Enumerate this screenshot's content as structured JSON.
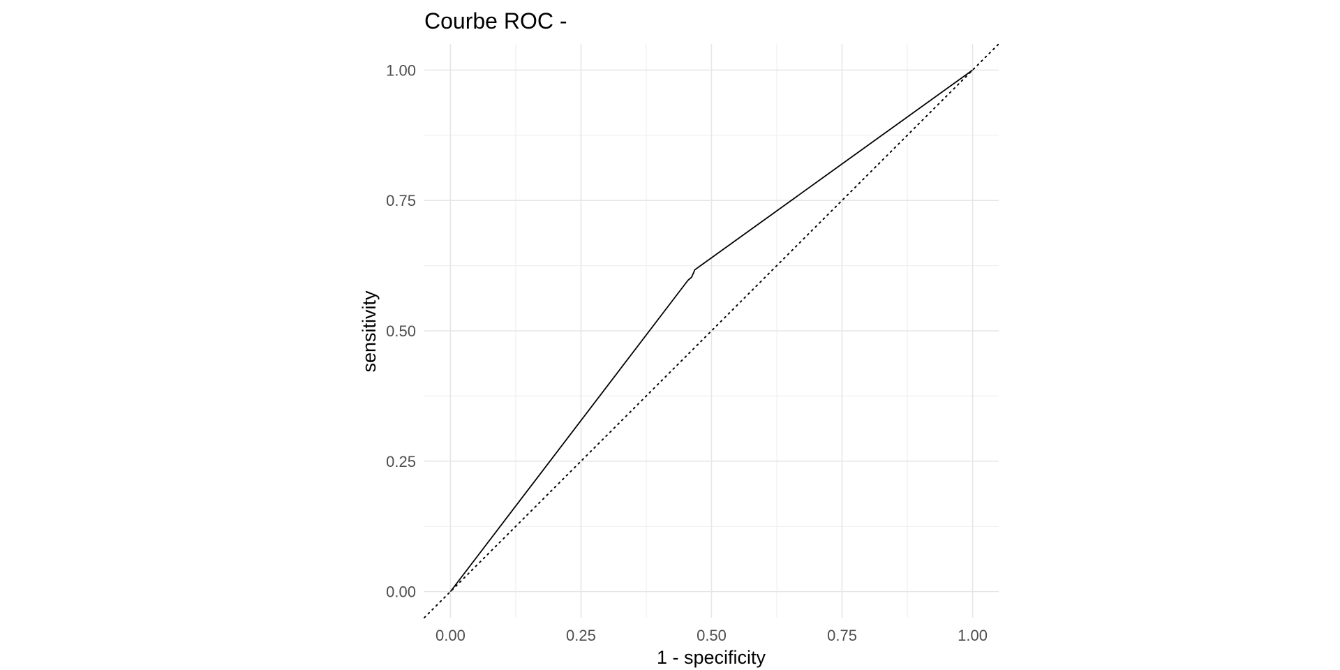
{
  "chart_data": {
    "type": "line",
    "title": "Courbe ROC -",
    "xlabel": "1 - specificity",
    "ylabel": "sensitivity",
    "xlim": [
      -0.05,
      1.05
    ],
    "ylim": [
      -0.05,
      1.05
    ],
    "x_ticks": [
      0.0,
      0.25,
      0.5,
      0.75,
      1.0
    ],
    "x_tick_labels": [
      "0.00",
      "0.25",
      "0.50",
      "0.75",
      "1.00"
    ],
    "y_ticks": [
      0.0,
      0.25,
      0.5,
      0.75,
      1.0
    ],
    "y_tick_labels": [
      "0.00",
      "0.25",
      "0.50",
      "0.75",
      "1.00"
    ],
    "grid": true,
    "legend": "none",
    "series": [
      {
        "style": "solid",
        "color": "#000000",
        "x": [
          0.0,
          0.455,
          0.462,
          0.468,
          1.0
        ],
        "y": [
          0.0,
          0.597,
          0.603,
          0.617,
          1.0
        ]
      }
    ],
    "reference_line": {
      "style": "dotted",
      "color": "#000000",
      "x": [
        -0.05,
        1.05
      ],
      "y": [
        -0.05,
        1.05
      ]
    }
  }
}
